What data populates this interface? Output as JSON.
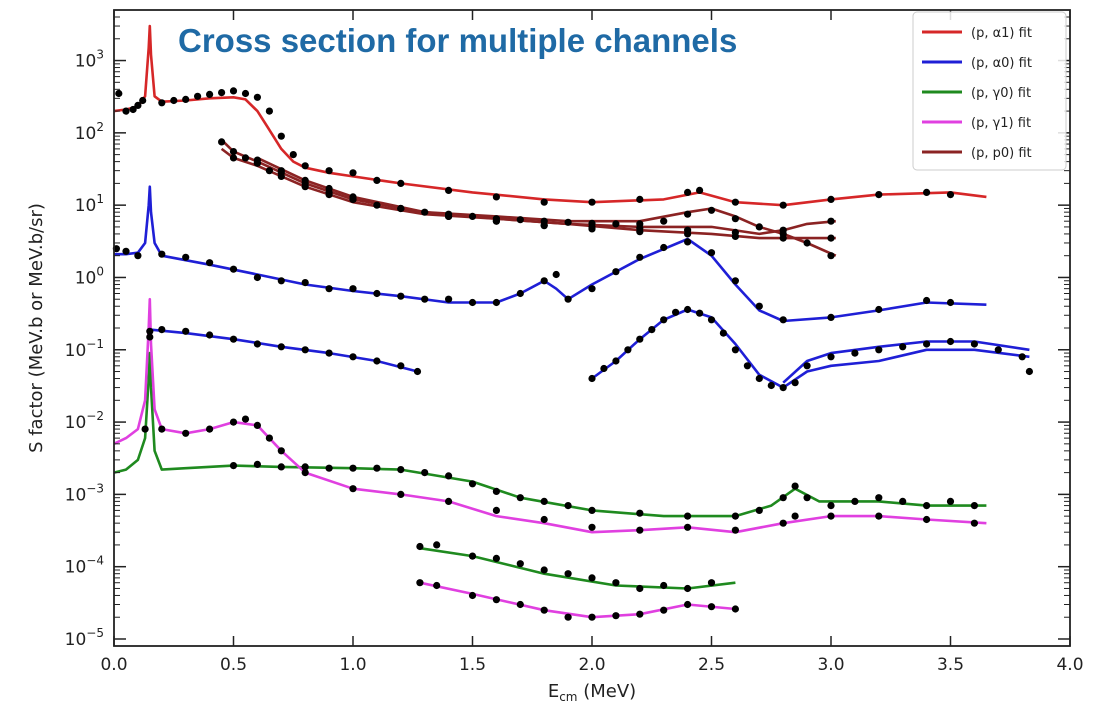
{
  "chart_data": {
    "type": "line",
    "title": "Cross section for multiple channels",
    "title_color": "#1f6aa5",
    "xlabel_main": "E",
    "xlabel_sub": "cm",
    "xlabel_unit": " (MeV)",
    "ylabel": "S factor (MeV.b or MeV.b/sr)",
    "xlim": [
      0,
      4.0
    ],
    "ylim": [
      8e-06,
      5000
    ],
    "yscale": "log",
    "grid": false,
    "legend_position": "top-right",
    "x_ticks": [
      {
        "value": 0.0,
        "label": "0.0"
      },
      {
        "value": 0.5,
        "label": "0.5"
      },
      {
        "value": 1.0,
        "label": "1.0"
      },
      {
        "value": 1.5,
        "label": "1.5"
      },
      {
        "value": 2.0,
        "label": "2.0"
      },
      {
        "value": 2.5,
        "label": "2.5"
      },
      {
        "value": 3.0,
        "label": "3.0"
      },
      {
        "value": 3.5,
        "label": "3.5"
      },
      {
        "value": 4.0,
        "label": "4.0"
      }
    ],
    "y_ticks": [
      {
        "value": 1e-05,
        "base": "10",
        "exp": "−5"
      },
      {
        "value": 0.0001,
        "base": "10",
        "exp": "−4"
      },
      {
        "value": 0.001,
        "base": "10",
        "exp": "−3"
      },
      {
        "value": 0.01,
        "base": "10",
        "exp": "−2"
      },
      {
        "value": 0.1,
        "base": "10",
        "exp": "−1"
      },
      {
        "value": 1,
        "base": "10",
        "exp": "0"
      },
      {
        "value": 10,
        "base": "10",
        "exp": "1"
      },
      {
        "value": 100,
        "base": "10",
        "exp": "2"
      },
      {
        "value": 1000,
        "base": "10",
        "exp": "3"
      }
    ],
    "legend": [
      {
        "label": "(p, α1) fit",
        "color": "#d62728"
      },
      {
        "label": "(p, α0) fit",
        "color": "#1f1fd6"
      },
      {
        "label": "(p, γ0) fit",
        "color": "#1f8a1f"
      },
      {
        "label": "(p, γ1) fit",
        "color": "#e040e0"
      },
      {
        "label": "(p, p0) fit",
        "color": "#8b2323"
      }
    ],
    "curves": [
      {
        "series": "(p, α1) fit",
        "color": "#d62728",
        "x": [
          0,
          0.05,
          0.1,
          0.13,
          0.145,
          0.15,
          0.155,
          0.17,
          0.2,
          0.3,
          0.4,
          0.5,
          0.55,
          0.6,
          0.65,
          0.7,
          0.75,
          0.8,
          0.9,
          1.0,
          1.2,
          1.5,
          1.8,
          2.0,
          2.3,
          2.45,
          2.6,
          2.8,
          3.0,
          3.2,
          3.5,
          3.65
        ],
        "y": [
          200,
          210,
          230,
          320,
          1500,
          3000,
          1200,
          320,
          270,
          280,
          300,
          310,
          290,
          200,
          110,
          60,
          40,
          33,
          28,
          25,
          20,
          15,
          12,
          11,
          12,
          15,
          11,
          10,
          12,
          14,
          15,
          13
        ]
      },
      {
        "series": "(p, α0) fit",
        "color": "#1f1fd6",
        "x": [
          0,
          0.05,
          0.1,
          0.13,
          0.145,
          0.15,
          0.155,
          0.17,
          0.2,
          0.4,
          0.6,
          0.8,
          1.0,
          1.2,
          1.4,
          1.6,
          1.7,
          1.8,
          1.85,
          1.9,
          2.0,
          2.2,
          2.4,
          2.5,
          2.6,
          2.7,
          2.8,
          3.0,
          3.2,
          3.4,
          3.65
        ],
        "y": [
          2.1,
          2.1,
          2.2,
          3,
          10,
          18,
          8,
          3,
          2.0,
          1.5,
          1.1,
          0.8,
          0.65,
          0.55,
          0.45,
          0.45,
          0.6,
          0.9,
          0.7,
          0.5,
          0.8,
          1.8,
          3.4,
          2.0,
          0.8,
          0.35,
          0.25,
          0.28,
          0.35,
          0.45,
          0.42
        ]
      },
      {
        "series": "(p, α0) fit",
        "color": "#1f1fd6",
        "x": [
          0.15,
          0.3,
          0.5,
          0.7,
          0.9,
          1.1,
          1.27
        ],
        "y": [
          0.19,
          0.17,
          0.14,
          0.11,
          0.09,
          0.07,
          0.05
        ]
      },
      {
        "series": "(p, α0) fit",
        "color": "#1f1fd6",
        "x": [
          2.0,
          2.1,
          2.2,
          2.3,
          2.4,
          2.5,
          2.6,
          2.7,
          2.8,
          2.9,
          3.0,
          3.2,
          3.4,
          3.6,
          3.83
        ],
        "y": [
          0.04,
          0.07,
          0.14,
          0.26,
          0.36,
          0.28,
          0.12,
          0.045,
          0.03,
          0.05,
          0.06,
          0.07,
          0.1,
          0.1,
          0.08
        ]
      },
      {
        "series": "(p, α0) fit",
        "color": "#1f1fd6",
        "x": [
          2.8,
          2.9,
          3.0,
          3.2,
          3.4,
          3.6,
          3.83
        ],
        "y": [
          0.035,
          0.07,
          0.09,
          0.11,
          0.13,
          0.13,
          0.1
        ]
      },
      {
        "series": "(p, γ0) fit",
        "color": "#1f8a1f",
        "x": [
          0,
          0.05,
          0.1,
          0.13,
          0.145,
          0.15,
          0.155,
          0.17,
          0.2,
          0.3,
          0.5,
          0.7,
          1.0,
          1.2,
          1.5,
          1.7,
          2.0,
          2.3,
          2.6,
          2.75,
          2.85,
          2.95,
          3.2,
          3.4,
          3.65
        ],
        "y": [
          0.002,
          0.0022,
          0.003,
          0.006,
          0.04,
          0.09,
          0.03,
          0.004,
          0.0022,
          0.0023,
          0.0025,
          0.0024,
          0.0023,
          0.0022,
          0.0015,
          0.0009,
          0.0006,
          0.0005,
          0.0005,
          0.0007,
          0.0012,
          0.0008,
          0.0008,
          0.0007,
          0.0007
        ]
      },
      {
        "series": "(p, γ1) fit",
        "color": "#e040e0",
        "x": [
          0,
          0.05,
          0.1,
          0.13,
          0.145,
          0.15,
          0.155,
          0.17,
          0.2,
          0.3,
          0.4,
          0.5,
          0.6,
          0.7,
          0.8,
          1.0,
          1.2,
          1.4,
          1.6,
          1.8,
          2.0,
          2.2,
          2.4,
          2.6,
          2.8,
          3.0,
          3.2,
          3.4,
          3.65
        ],
        "y": [
          0.005,
          0.006,
          0.008,
          0.02,
          0.2,
          0.5,
          0.12,
          0.015,
          0.008,
          0.007,
          0.008,
          0.01,
          0.009,
          0.004,
          0.002,
          0.0012,
          0.001,
          0.0008,
          0.0005,
          0.0004,
          0.0003,
          0.00032,
          0.00035,
          0.0003,
          0.0004,
          0.0005,
          0.0005,
          0.00045,
          0.0004
        ]
      },
      {
        "series": "(p, γ0) fit",
        "color": "#1f8a1f",
        "x": [
          1.28,
          1.5,
          1.8,
          2.1,
          2.4,
          2.6
        ],
        "y": [
          0.00018,
          0.00014,
          8e-05,
          5.5e-05,
          5e-05,
          6e-05
        ]
      },
      {
        "series": "(p, γ1) fit",
        "color": "#e040e0",
        "x": [
          1.28,
          1.5,
          1.8,
          2.0,
          2.2,
          2.4,
          2.6
        ],
        "y": [
          6e-05,
          4.2e-05,
          2.5e-05,
          2e-05,
          2.2e-05,
          3e-05,
          2.6e-05
        ]
      },
      {
        "series": "(p, p0) fit",
        "color": "#8b2323",
        "x": [
          0.45,
          0.5,
          0.6,
          0.8,
          1.0,
          1.3,
          1.6,
          1.9,
          2.2,
          2.4,
          2.5,
          2.6,
          2.7,
          2.8,
          2.9,
          3.02
        ],
        "y": [
          80,
          55,
          40,
          20,
          12,
          8,
          7,
          6,
          6,
          8,
          9,
          7,
          5,
          4,
          3,
          2
        ]
      },
      {
        "series": "(p, p0) fit",
        "color": "#8b2323",
        "x": [
          0.45,
          0.5,
          0.6,
          0.8,
          1.0,
          1.3,
          1.6,
          1.9,
          2.2,
          2.5,
          2.7,
          2.8,
          2.9,
          3.02
        ],
        "y": [
          60,
          45,
          35,
          18,
          11,
          7.5,
          6.5,
          5.5,
          5,
          5,
          4,
          4.5,
          5.5,
          6
        ]
      },
      {
        "series": "(p, p0) fit",
        "color": "#8b2323",
        "x": [
          0.6,
          0.8,
          1.0,
          1.3,
          1.6,
          1.9,
          2.2,
          2.5,
          2.7,
          2.8,
          2.9,
          3.02
        ],
        "y": [
          45,
          22,
          13,
          8,
          6.5,
          5.5,
          4.5,
          4,
          3.5,
          3.5,
          3.5,
          3.5
        ]
      }
    ],
    "markers": [
      {
        "color": "#000000",
        "x": [
          0.02,
          0.05,
          0.08,
          0.1,
          0.12,
          0.2,
          0.25,
          0.3,
          0.35,
          0.4,
          0.45,
          0.5,
          0.55,
          0.6,
          0.65,
          0.7,
          0.75,
          0.8,
          0.9,
          1.0,
          1.1,
          1.2,
          1.4,
          1.6,
          1.8,
          2.0,
          2.2,
          2.4,
          2.45,
          2.6,
          2.8,
          3.0,
          3.2,
          3.4,
          3.5
        ],
        "y": [
          350,
          200,
          210,
          240,
          280,
          260,
          280,
          290,
          320,
          340,
          360,
          380,
          350,
          310,
          200,
          90,
          50,
          35,
          30,
          28,
          22,
          20,
          16,
          13,
          11,
          11,
          12,
          15,
          16,
          11,
          10,
          12,
          14,
          15,
          14
        ]
      },
      {
        "color": "#000000",
        "x": [
          0.45,
          0.5,
          0.55,
          0.6,
          0.65,
          0.7,
          0.8,
          0.9,
          1.0,
          1.1,
          1.2,
          1.3,
          1.4,
          1.5,
          1.6,
          1.7,
          1.8,
          1.9,
          2.0,
          2.1,
          2.2,
          2.3,
          2.4,
          2.5,
          2.6,
          2.7,
          2.8,
          2.9,
          3.0
        ],
        "y": [
          75,
          55,
          45,
          38,
          30,
          25,
          18,
          14,
          12,
          10,
          9,
          8,
          7.5,
          7,
          6.5,
          6.3,
          6,
          5.8,
          5.6,
          5.5,
          5.5,
          6,
          7.5,
          8.5,
          6.5,
          5,
          4,
          3,
          2
        ]
      },
      {
        "color": "#000000",
        "x": [
          0.5,
          0.6,
          0.7,
          0.8,
          0.9,
          1.0,
          1.2,
          1.4,
          1.6,
          1.8,
          2.0,
          2.2,
          2.4,
          2.6,
          2.8,
          3.0
        ],
        "y": [
          45,
          38,
          28,
          20,
          15,
          12,
          9,
          7,
          6,
          5.2,
          5,
          4.8,
          4.5,
          4.2,
          4.5,
          6
        ]
      },
      {
        "color": "#000000",
        "x": [
          0.6,
          0.7,
          0.8,
          0.9,
          1.0,
          1.2,
          1.4,
          1.6,
          1.8,
          2.0,
          2.2,
          2.4,
          2.6,
          2.8,
          3.0
        ],
        "y": [
          42,
          30,
          22,
          17,
          13,
          9,
          7,
          6,
          5.3,
          4.7,
          4.3,
          4,
          3.7,
          3.5,
          3.5
        ]
      },
      {
        "color": "#000000",
        "x": [
          0.01,
          0.05,
          0.1,
          0.2,
          0.3,
          0.4,
          0.5,
          0.6,
          0.7,
          0.8,
          0.9,
          1.0,
          1.1,
          1.2,
          1.3,
          1.4,
          1.5,
          1.6,
          1.7,
          1.8,
          1.85,
          1.9,
          2.0,
          2.1,
          2.2,
          2.3,
          2.4,
          2.5,
          2.6,
          2.7,
          2.8,
          3.0,
          3.2,
          3.4,
          3.5
        ],
        "y": [
          2.5,
          2.3,
          2.0,
          2.1,
          1.9,
          1.6,
          1.3,
          1.0,
          0.9,
          0.85,
          0.7,
          0.7,
          0.6,
          0.55,
          0.5,
          0.5,
          0.45,
          0.45,
          0.6,
          0.9,
          1.1,
          0.5,
          0.7,
          1.2,
          1.9,
          2.6,
          3.1,
          2.2,
          0.9,
          0.4,
          0.26,
          0.28,
          0.36,
          0.48,
          0.45
        ]
      },
      {
        "color": "#000000",
        "x": [
          0.15,
          0.2,
          0.3,
          0.4,
          0.5,
          0.6,
          0.7,
          0.8,
          0.9,
          1.0,
          1.1,
          1.2,
          1.27
        ],
        "y": [
          0.18,
          0.19,
          0.18,
          0.16,
          0.14,
          0.12,
          0.11,
          0.1,
          0.09,
          0.08,
          0.07,
          0.06,
          0.05
        ]
      },
      {
        "color": "#000000",
        "x": [
          2.0,
          2.05,
          2.1,
          2.15,
          2.2,
          2.25,
          2.3,
          2.35,
          2.4,
          2.45,
          2.5,
          2.55,
          2.6,
          2.65,
          2.7,
          2.75,
          2.8,
          2.85,
          2.9,
          3.0,
          3.1,
          3.2,
          3.3,
          3.4,
          3.5,
          3.6,
          3.7,
          3.8,
          3.83
        ],
        "y": [
          0.04,
          0.055,
          0.07,
          0.1,
          0.14,
          0.19,
          0.26,
          0.33,
          0.36,
          0.32,
          0.26,
          0.17,
          0.1,
          0.06,
          0.04,
          0.032,
          0.03,
          0.035,
          0.06,
          0.08,
          0.09,
          0.1,
          0.11,
          0.12,
          0.13,
          0.12,
          0.1,
          0.08,
          0.05
        ]
      },
      {
        "color": "#000000",
        "x": [
          0.13,
          0.15,
          0.2,
          0.3,
          0.4,
          0.5,
          0.55,
          0.6,
          0.65,
          0.7,
          0.8,
          1.0,
          1.2,
          1.4,
          1.6,
          1.8,
          2.0,
          2.2,
          2.4,
          2.6,
          2.8,
          2.85,
          3.0,
          3.2,
          3.4,
          3.6
        ],
        "y": [
          0.008,
          0.15,
          0.008,
          0.007,
          0.008,
          0.01,
          0.011,
          0.009,
          0.006,
          0.004,
          0.002,
          0.0012,
          0.001,
          0.0008,
          0.0006,
          0.00045,
          0.00035,
          0.00032,
          0.00035,
          0.00032,
          0.0004,
          0.0005,
          0.0005,
          0.0005,
          0.00045,
          0.0004
        ]
      },
      {
        "color": "#000000",
        "x": [
          0.5,
          0.6,
          0.7,
          0.8,
          0.9,
          1.0,
          1.1,
          1.2,
          1.3,
          1.4,
          1.5,
          1.6,
          1.7,
          1.8,
          1.9,
          2.0,
          2.2,
          2.4,
          2.6,
          2.7,
          2.8,
          2.85,
          2.9,
          3.0,
          3.1,
          3.2,
          3.3,
          3.4,
          3.5,
          3.6
        ],
        "y": [
          0.0025,
          0.0026,
          0.0024,
          0.0024,
          0.0023,
          0.0023,
          0.0023,
          0.0022,
          0.002,
          0.0018,
          0.0014,
          0.0011,
          0.0009,
          0.0008,
          0.0007,
          0.0006,
          0.00055,
          0.0005,
          0.0005,
          0.0006,
          0.0009,
          0.0013,
          0.0009,
          0.0007,
          0.0008,
          0.0009,
          0.0008,
          0.0007,
          0.0008,
          0.0007
        ]
      },
      {
        "color": "#000000",
        "x": [
          1.28,
          1.35,
          1.5,
          1.6,
          1.7,
          1.8,
          1.9,
          2.0,
          2.1,
          2.2,
          2.3,
          2.4,
          2.5
        ],
        "y": [
          0.00019,
          0.0002,
          0.00014,
          0.00013,
          0.00011,
          9e-05,
          8e-05,
          7e-05,
          6e-05,
          5e-05,
          5.5e-05,
          5e-05,
          6e-05
        ]
      },
      {
        "color": "#000000",
        "x": [
          1.28,
          1.35,
          1.5,
          1.6,
          1.7,
          1.8,
          1.9,
          2.0,
          2.1,
          2.2,
          2.3,
          2.4,
          2.5,
          2.6
        ],
        "y": [
          6e-05,
          5.5e-05,
          4e-05,
          3.5e-05,
          3e-05,
          2.5e-05,
          2e-05,
          2e-05,
          2.1e-05,
          2.2e-05,
          2.5e-05,
          3e-05,
          2.8e-05,
          2.6e-05
        ]
      }
    ]
  }
}
